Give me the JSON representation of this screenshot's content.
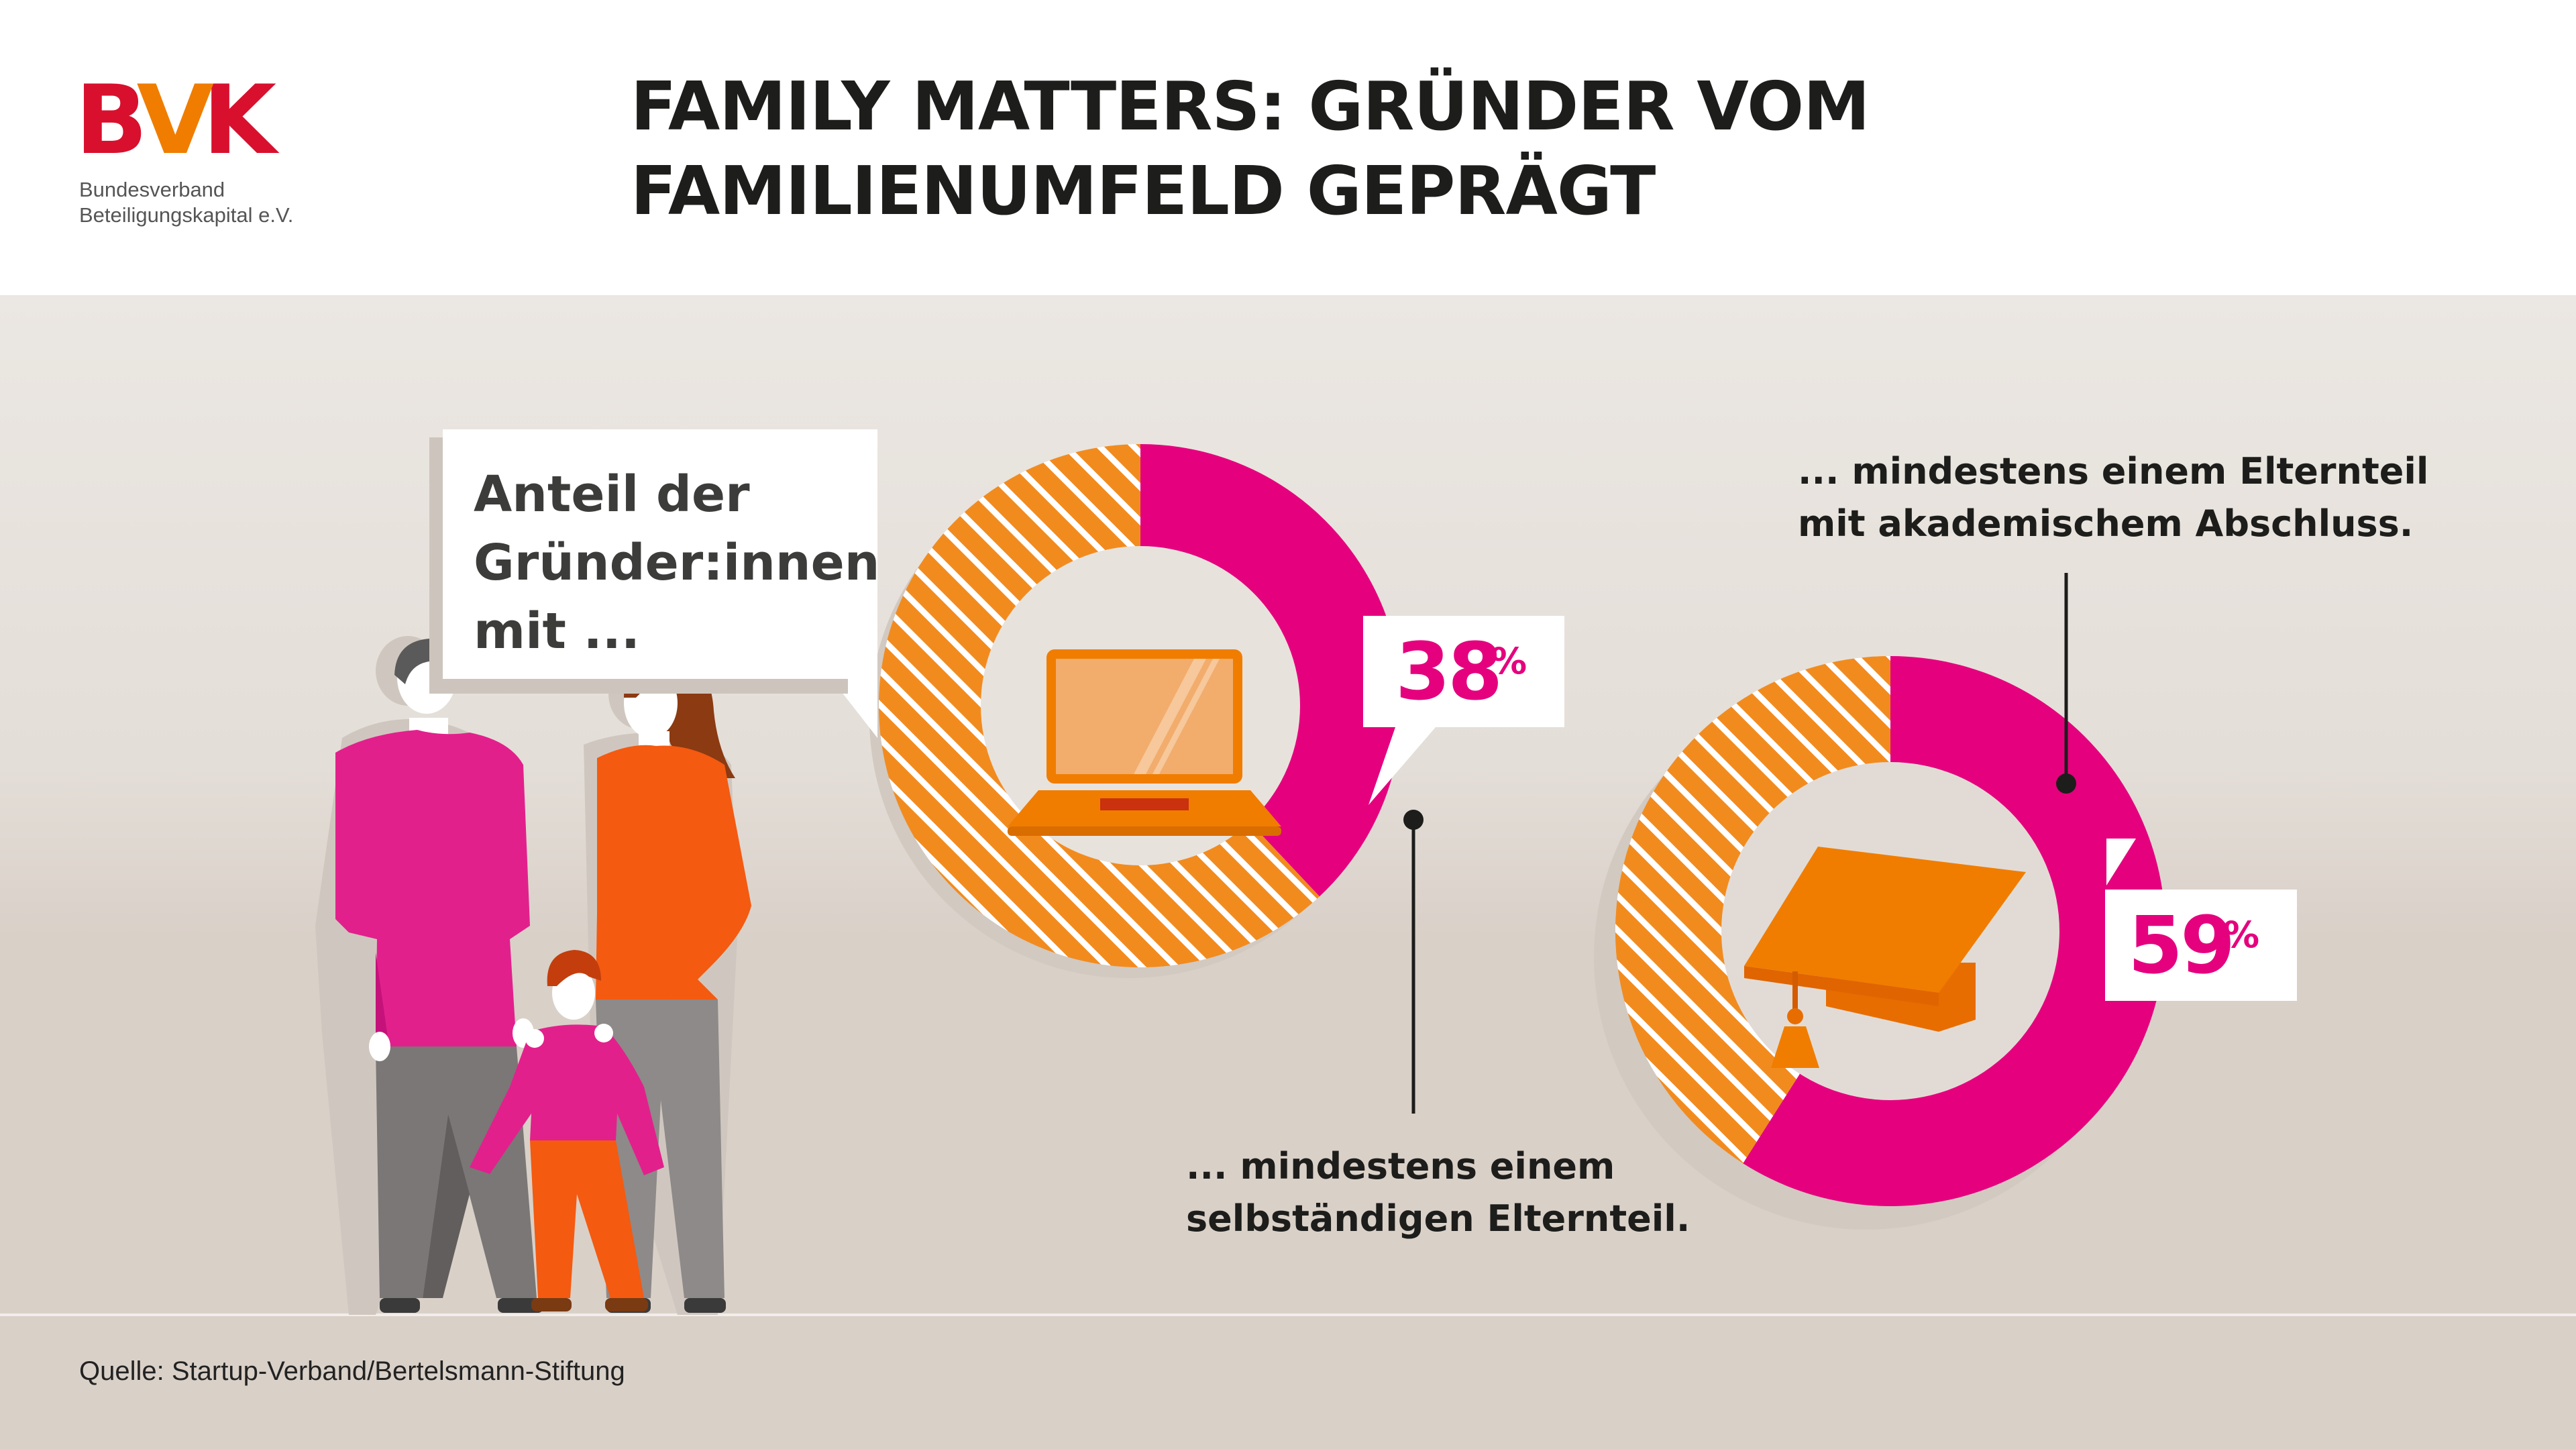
{
  "header": {
    "logo": {
      "mark": "BVK",
      "line1": "Bundesverband",
      "line2": "Beteiligungskapital e.V."
    },
    "title_line1": "FAMILY MATTERS: GRÜNDER VOM",
    "title_line2": "FAMILIENUMFELD GEPRÄGT"
  },
  "bubble": {
    "line1": "Anteil der",
    "line2": "Gründer:innen",
    "line3": "mit ..."
  },
  "colors": {
    "magenta": "#e5007e",
    "orange": "#f07d00",
    "hatch_orange": "#f28b1e",
    "background": "#e6e0da"
  },
  "chart_data": [
    {
      "type": "pie",
      "variant": "donut",
      "icon": "laptop-icon",
      "value": 38,
      "value_label": "38",
      "unit": "%",
      "label_line1": "... mindestens einem",
      "label_line2": "selbständigen Elternteil."
    },
    {
      "type": "pie",
      "variant": "donut",
      "icon": "graduation-cap-icon",
      "value": 59,
      "value_label": "59",
      "unit": "%",
      "label_line1": "... mindestens einem Elternteil",
      "label_line2": "mit akademischem Abschluss."
    }
  ],
  "footer": {
    "source": "Quelle: Startup-Verband/Bertelsmann-Stiftung"
  }
}
